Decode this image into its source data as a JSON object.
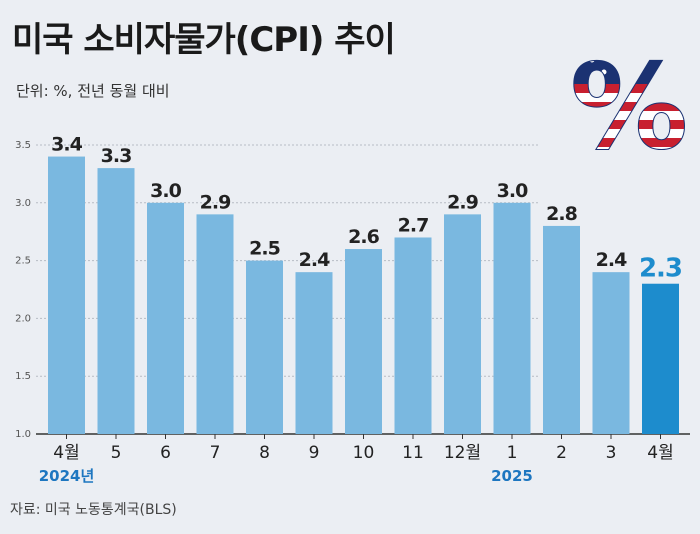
{
  "header": {
    "title": "미국 소비자물가(CPI) 추이",
    "subtitle": "단위: %, 전년 동월 대비"
  },
  "footer": {
    "source": "자료: 미국 노동통계국(BLS)"
  },
  "logo": {
    "glyph": "%",
    "name": "us-flag-percent-icon"
  },
  "colors": {
    "bar": "#7ab8e0",
    "bar_highlight": "#1d8ccd",
    "year_label": "#1d76c0"
  },
  "chart_data": {
    "type": "bar",
    "categories": [
      "4월",
      "5",
      "6",
      "7",
      "8",
      "9",
      "10",
      "11",
      "12월",
      "1",
      "2",
      "3",
      "4월"
    ],
    "values": [
      3.4,
      3.3,
      3.0,
      2.9,
      2.5,
      2.4,
      2.6,
      2.7,
      2.9,
      3.0,
      2.8,
      2.4,
      2.3
    ],
    "data_labels": [
      "3.4",
      "3.3",
      "3.0",
      "2.9",
      "2.5",
      "2.4",
      "2.6",
      "2.7",
      "2.9",
      "3.0",
      "2.8",
      "2.4",
      "2.3"
    ],
    "highlight_index": 12,
    "year_labels": [
      {
        "index": 0,
        "label": "2024년"
      },
      {
        "index": 9,
        "label": "2025"
      }
    ],
    "yticks": [
      "1.0",
      "1.5",
      "2.0",
      "2.5",
      "3.0",
      "3.5"
    ],
    "ylim": [
      1.0,
      3.5
    ],
    "grid": true,
    "legend": "none"
  }
}
